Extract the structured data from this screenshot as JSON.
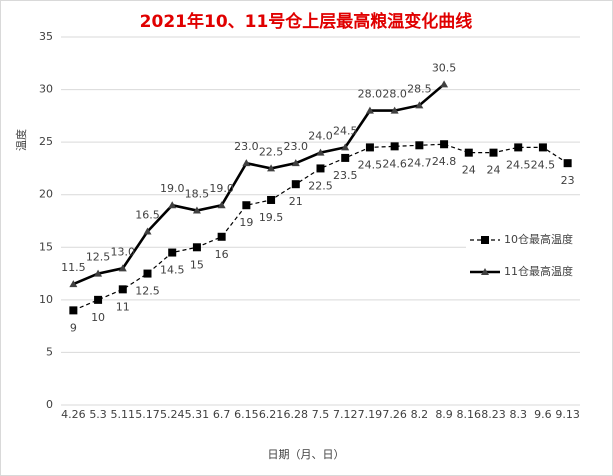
{
  "chart_data": {
    "type": "line",
    "title": "2021年10、11号仓上层最高粮温变化曲线",
    "x_label": "日期（月、日）",
    "y_label": "温度",
    "categories": [
      "4.26",
      "5.3",
      "5.11",
      "5.17",
      "5.24",
      "5.31",
      "6.7",
      "6.15",
      "6.21",
      "6.28",
      "7.5",
      "7.12",
      "7.19",
      "7.26",
      "8.2",
      "8.9",
      "8.16",
      "8.23",
      "8.3",
      "9.6",
      "9.13"
    ],
    "series": [
      {
        "name": "10仓最高温度",
        "color": "#000000",
        "values": [
          9,
          10,
          11,
          12.5,
          14.5,
          15,
          16,
          19,
          19.5,
          21,
          22.5,
          23.5,
          24.5,
          24.6,
          24.7,
          24.8,
          24,
          24,
          24.5,
          24.5,
          23
        ]
      },
      {
        "name": "11仓最高温度",
        "color": "#000000",
        "values": [
          11.5,
          12.5,
          13,
          16.5,
          19,
          18.5,
          19,
          23,
          22.5,
          23,
          24,
          24.5,
          28,
          28,
          28.5,
          30.5,
          null,
          null,
          null,
          null,
          null
        ],
        "value_labels": [
          "11.5",
          "12.5",
          "13.0",
          "16.5",
          "19.0",
          "18.5",
          "19.0",
          "23.0",
          "22.5",
          "23.0",
          "24.0",
          "24.5",
          "28.0",
          "28.0",
          "28.5",
          "30.5",
          null,
          null,
          null,
          null,
          null
        ]
      }
    ],
    "ylim": [
      0,
      35
    ],
    "yticks": [
      0,
      5,
      10,
      15,
      20,
      25,
      30,
      35
    ],
    "grid": true,
    "legend": "right"
  }
}
